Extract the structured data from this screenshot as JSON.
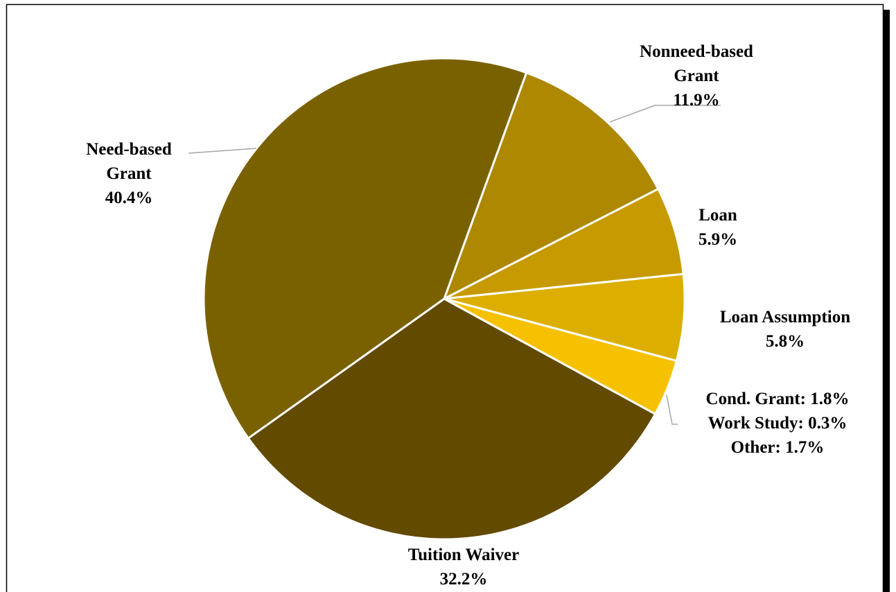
{
  "chart_data": {
    "type": "pie",
    "title": "",
    "slices": [
      {
        "label_lines": [
          "Nonneed-based",
          "Grant"
        ],
        "value": 11.9,
        "value_label": "11.9%",
        "color": "#ad8800"
      },
      {
        "label_lines": [
          "Loan"
        ],
        "value": 5.9,
        "value_label": "5.9%",
        "color": "#c69a00"
      },
      {
        "label_lines": [
          "Loan Assumption"
        ],
        "value": 5.8,
        "value_label": "5.8%",
        "color": "#dcae00"
      },
      {
        "label_lines": [],
        "value": 3.8,
        "value_label": "",
        "color": "#f6c100",
        "note_lines": [
          "Cond. Grant: 1.8%",
          "Work Study: 0.3%",
          "Other: 1.7%"
        ]
      },
      {
        "label_lines": [
          "Tuition Waiver"
        ],
        "value": 32.2,
        "value_label": "32.2%",
        "color": "#624a00"
      },
      {
        "label_lines": [
          "Need-based",
          "Grant"
        ],
        "value": 40.4,
        "value_label": "40.4%",
        "color": "#7a6100"
      }
    ],
    "start_angle_deg": 20,
    "direction": "clockwise",
    "legend": "none"
  }
}
